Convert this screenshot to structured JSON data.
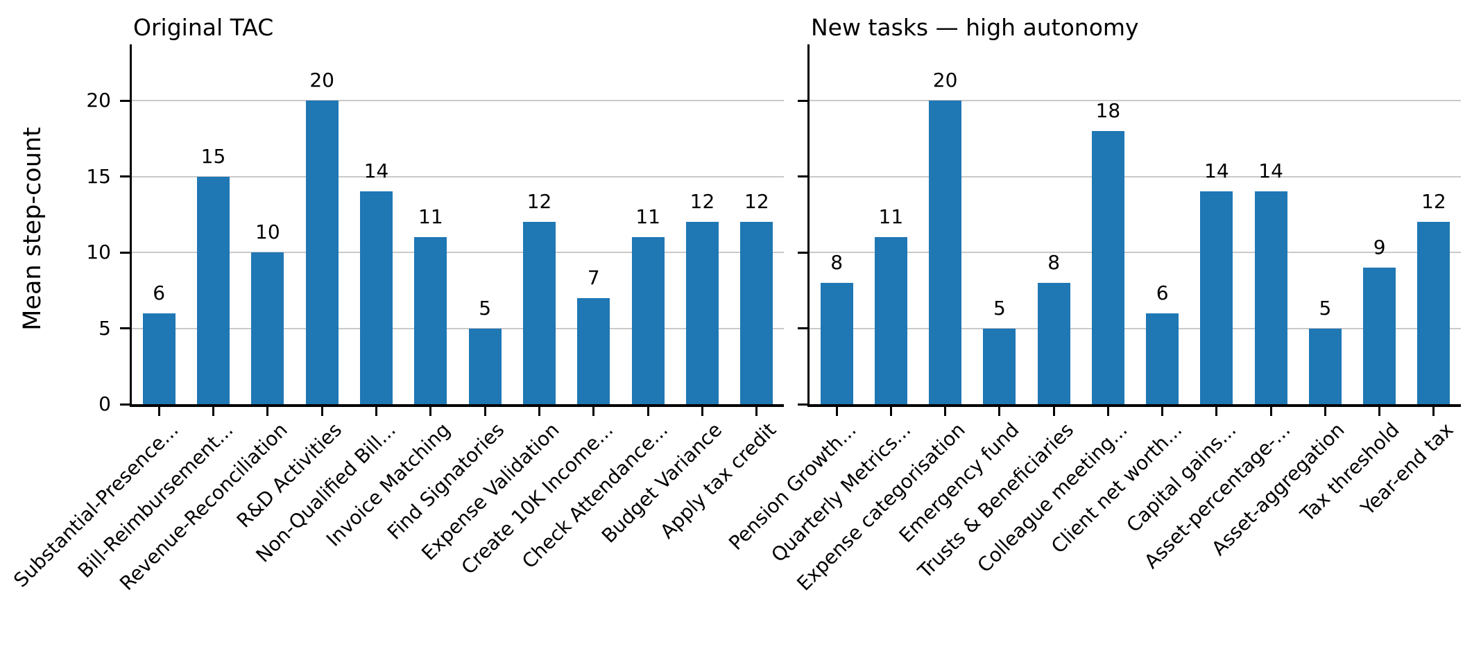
{
  "figure": {
    "ylabel": "Mean step-count",
    "bar_color": "#1f77b4",
    "grid_color": "#c9c9c9",
    "text_color": "#000000",
    "yticks": [
      0,
      5,
      10,
      15,
      20
    ]
  },
  "chart_data": [
    {
      "type": "bar",
      "title": "Original TAC",
      "categories": [
        "Substantial-Presence...",
        "Bill-Reimbursement...",
        "Revenue-Reconciliation",
        "R&D Activities",
        "Non-Qualified Bill...",
        "Invoice Matching",
        "Find Signatories",
        "Expense Validation",
        "Create 10K Income...",
        "Check Attendance...",
        "Budget Variance",
        "Apply tax credit"
      ],
      "values": [
        6,
        15,
        10,
        20,
        14,
        11,
        5,
        12,
        7,
        11,
        12,
        12
      ],
      "ylabel": "Mean step-count",
      "ylim": [
        0,
        23.7
      ],
      "yticks": [
        0,
        5,
        10,
        15,
        20
      ],
      "grid": true,
      "show_ytick_labels": true,
      "bar_value_labels": true,
      "xtick_rotation": 45
    },
    {
      "type": "bar",
      "title": "New tasks — high autonomy",
      "categories": [
        "Pension Growth...",
        "Quarterly Metrics...",
        "Expense categorisation",
        "Emergency fund",
        "Trusts & Beneficiaries",
        "Colleague meeting...",
        "Client net worth...",
        "Capital gains...",
        "Asset-percentage-...",
        "Asset-aggregation",
        "Tax threshold",
        "Year-end tax"
      ],
      "values": [
        8,
        11,
        20,
        5,
        8,
        18,
        6,
        14,
        14,
        5,
        9,
        12
      ],
      "ylabel": "Mean step-count",
      "ylim": [
        0,
        23.7
      ],
      "yticks": [
        0,
        5,
        10,
        15,
        20
      ],
      "grid": true,
      "show_ytick_labels": false,
      "bar_value_labels": true,
      "xtick_rotation": 45
    }
  ]
}
